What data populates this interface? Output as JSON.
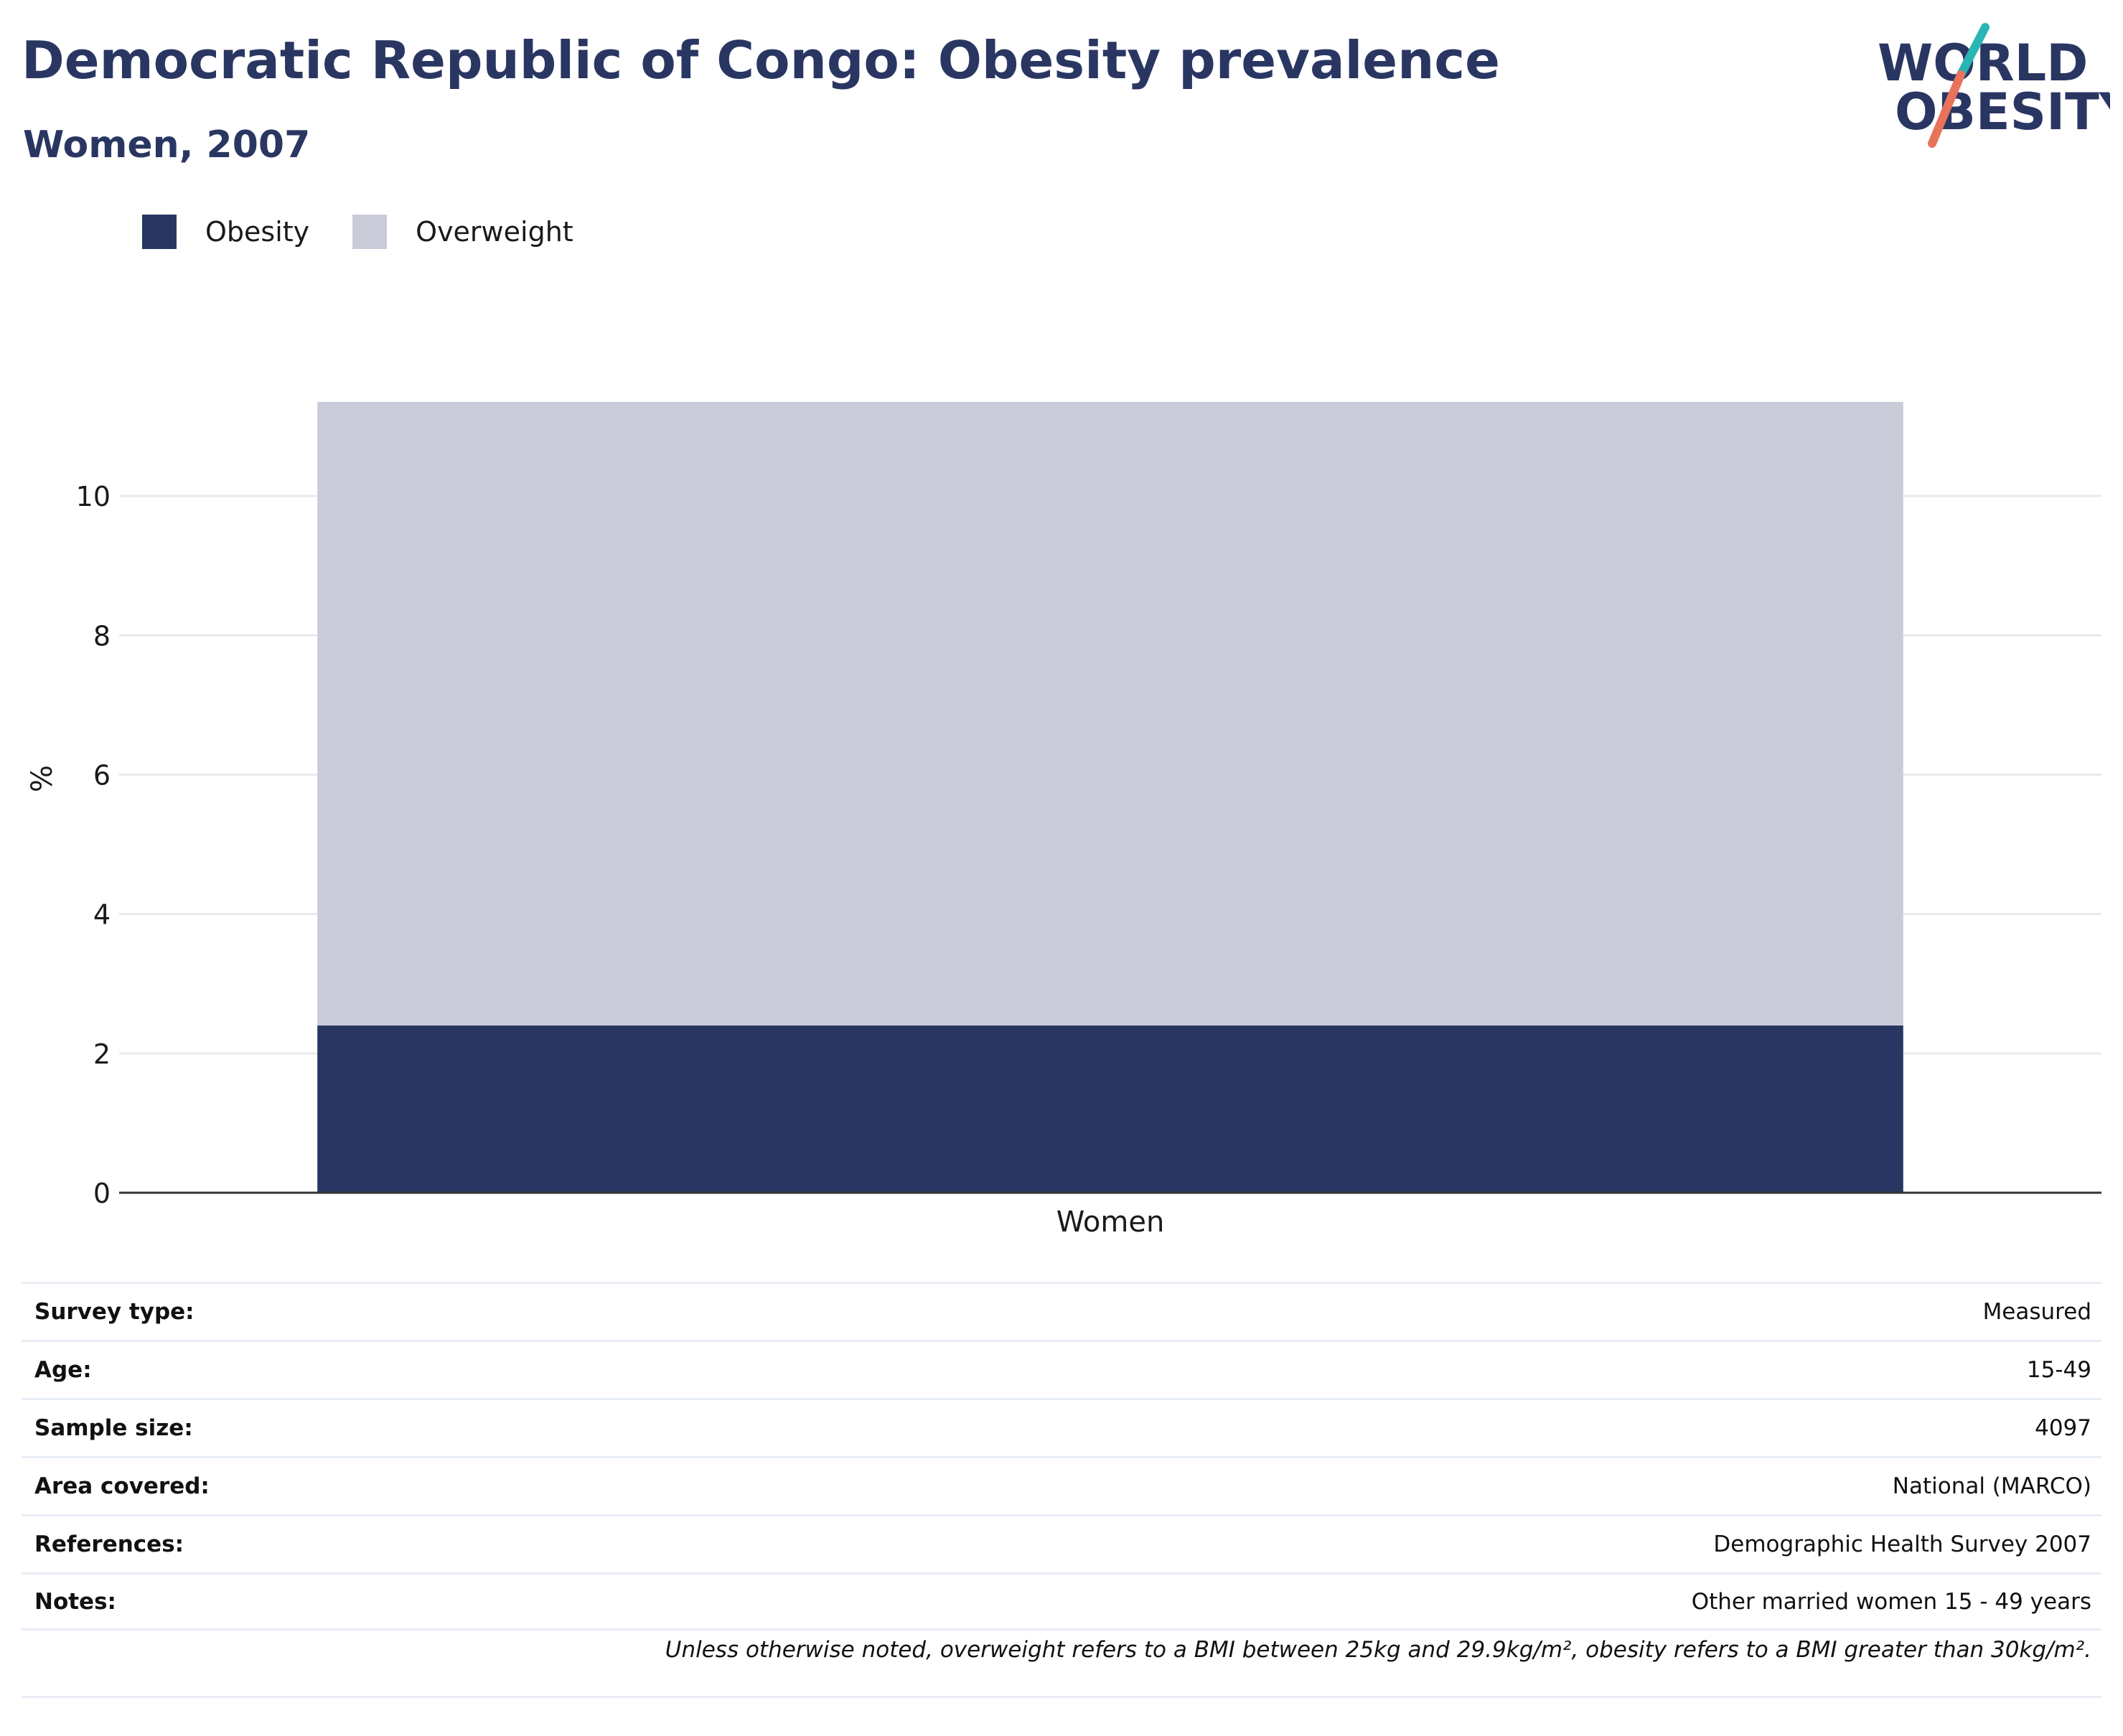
{
  "header": {
    "title": "Democratic Republic of Congo: Obesity prevalence",
    "subtitle": "Women, 2007"
  },
  "logo": {
    "line1": "WORLD",
    "line2": "OBESITY",
    "colors": {
      "text": "#2a3662",
      "slash_top": "#2ab5b5",
      "slash_bottom": "#e8735a"
    }
  },
  "legend": [
    {
      "label": "Obesity",
      "color": "#2a3662"
    },
    {
      "label": "Overweight",
      "color": "#c9ccd8"
    }
  ],
  "chart_data": {
    "type": "bar",
    "stacked": true,
    "categories": [
      "Women"
    ],
    "series": [
      {
        "name": "Obesity",
        "values": [
          2.4
        ],
        "color": "#2a3662"
      },
      {
        "name": "Overweight",
        "values": [
          8.95
        ],
        "color": "#c9ccd8"
      }
    ],
    "xlabel": "",
    "ylabel": "%",
    "ylim": [
      0,
      11.35
    ],
    "yticks": [
      0,
      2,
      4,
      6,
      8,
      10
    ],
    "grid": true,
    "legend_position": "top-left"
  },
  "meta": [
    {
      "label": "Survey type:",
      "value": "Measured"
    },
    {
      "label": "Age:",
      "value": "15-49"
    },
    {
      "label": "Sample size:",
      "value": "4097"
    },
    {
      "label": "Area covered:",
      "value": "National (MARCO)"
    },
    {
      "label": "References:",
      "value": "Demographic Health Survey 2007"
    },
    {
      "label": "Notes:",
      "value": "Other married women 15 - 49 years"
    }
  ],
  "footnote": "Unless otherwise noted, overweight refers to a BMI between 25kg and 29.9kg/m², obesity refers to a BMI greater than 30kg/m²."
}
